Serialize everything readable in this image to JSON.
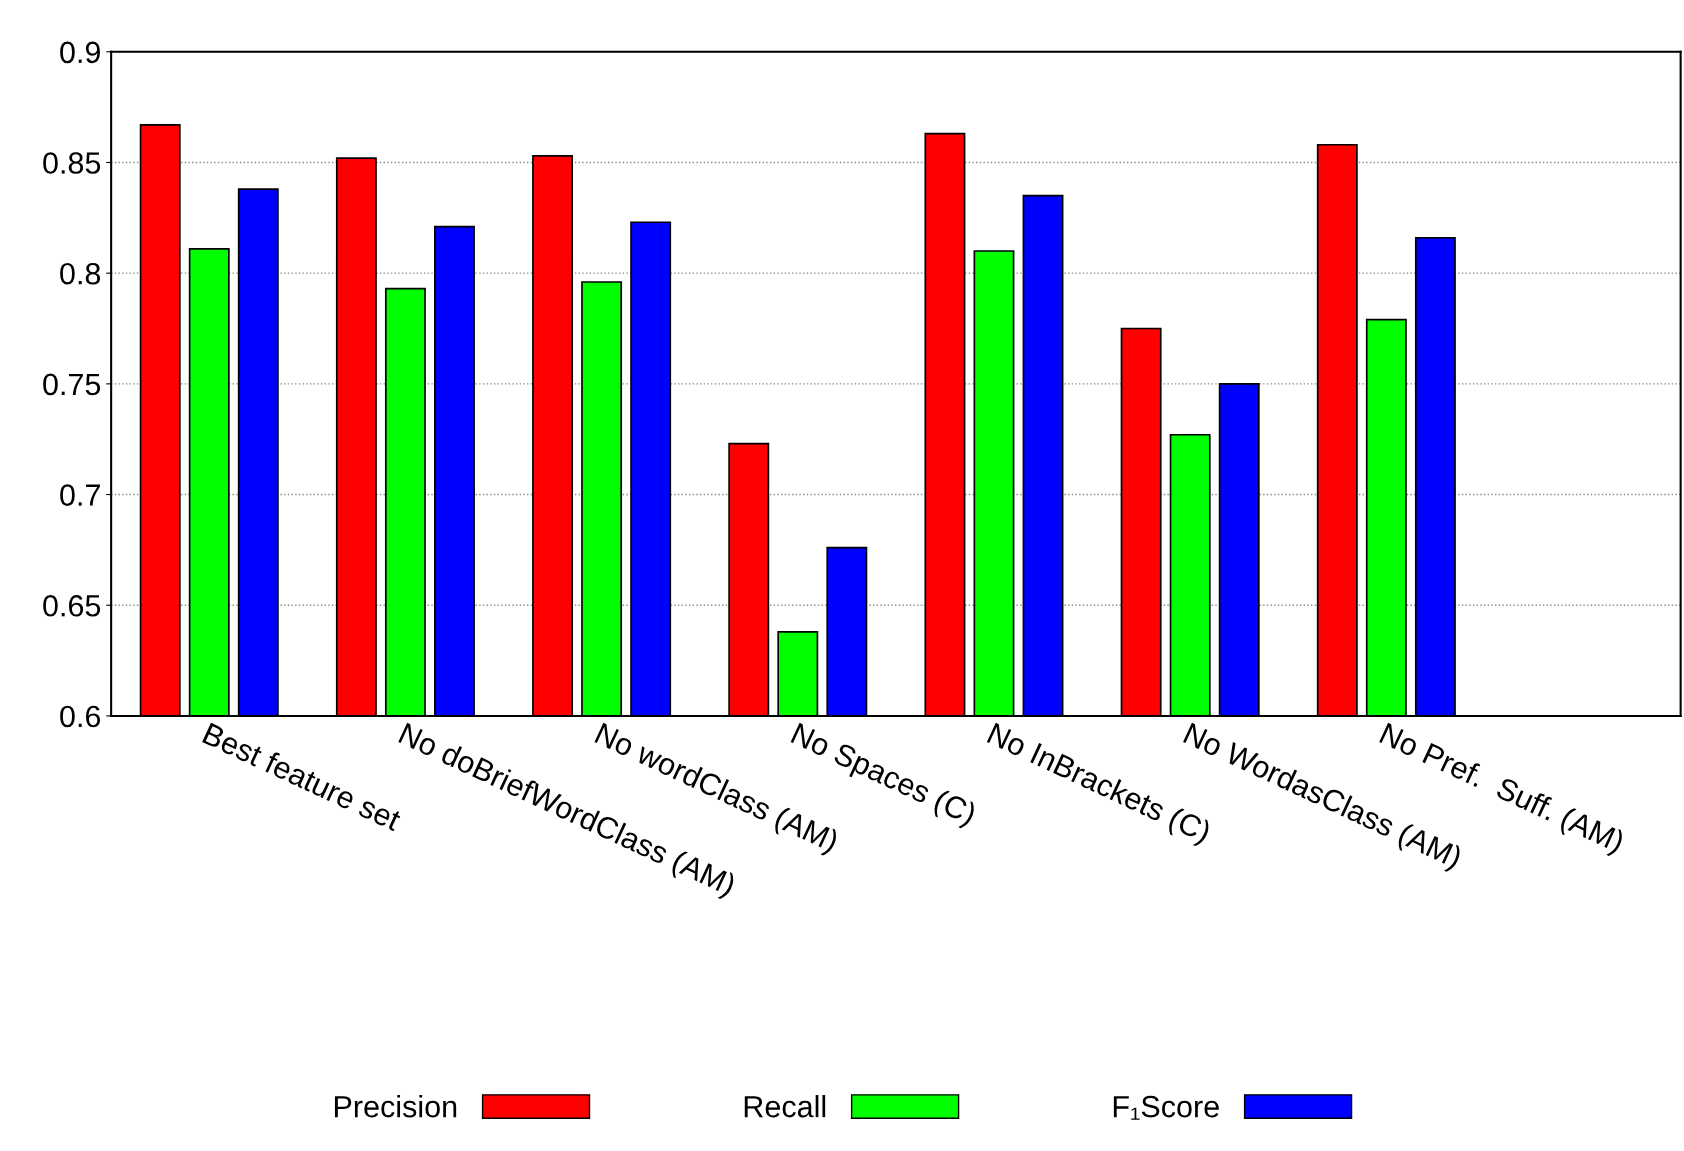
{
  "chart_data": {
    "type": "bar",
    "categories": [
      "Best feature set",
      "No doBriefWordClass (AM)",
      "No wordClass (AM)",
      "No Spaces (C)",
      "No InBrackets (C)",
      "No WordasClass (AM)",
      "No Pref.  Suff. (AM)",
      null
    ],
    "series": [
      {
        "name": "Precision",
        "color": "#ff0000",
        "values": [
          0.867,
          0.852,
          0.853,
          0.723,
          0.863,
          0.775,
          0.858,
          null
        ]
      },
      {
        "name": "Recall",
        "color": "#00ff00",
        "values": [
          0.811,
          0.793,
          0.796,
          0.638,
          0.81,
          0.727,
          0.779,
          null
        ]
      },
      {
        "name": "F₁Score",
        "color": "#0000ff",
        "values": [
          0.838,
          0.821,
          0.823,
          0.676,
          0.835,
          0.75,
          0.816,
          null
        ]
      }
    ],
    "ylim": [
      0.6,
      0.9
    ],
    "yticks": [
      0.6,
      0.65,
      0.7,
      0.75,
      0.8,
      0.85,
      0.9
    ],
    "grid": "y",
    "legend": "bottom"
  }
}
